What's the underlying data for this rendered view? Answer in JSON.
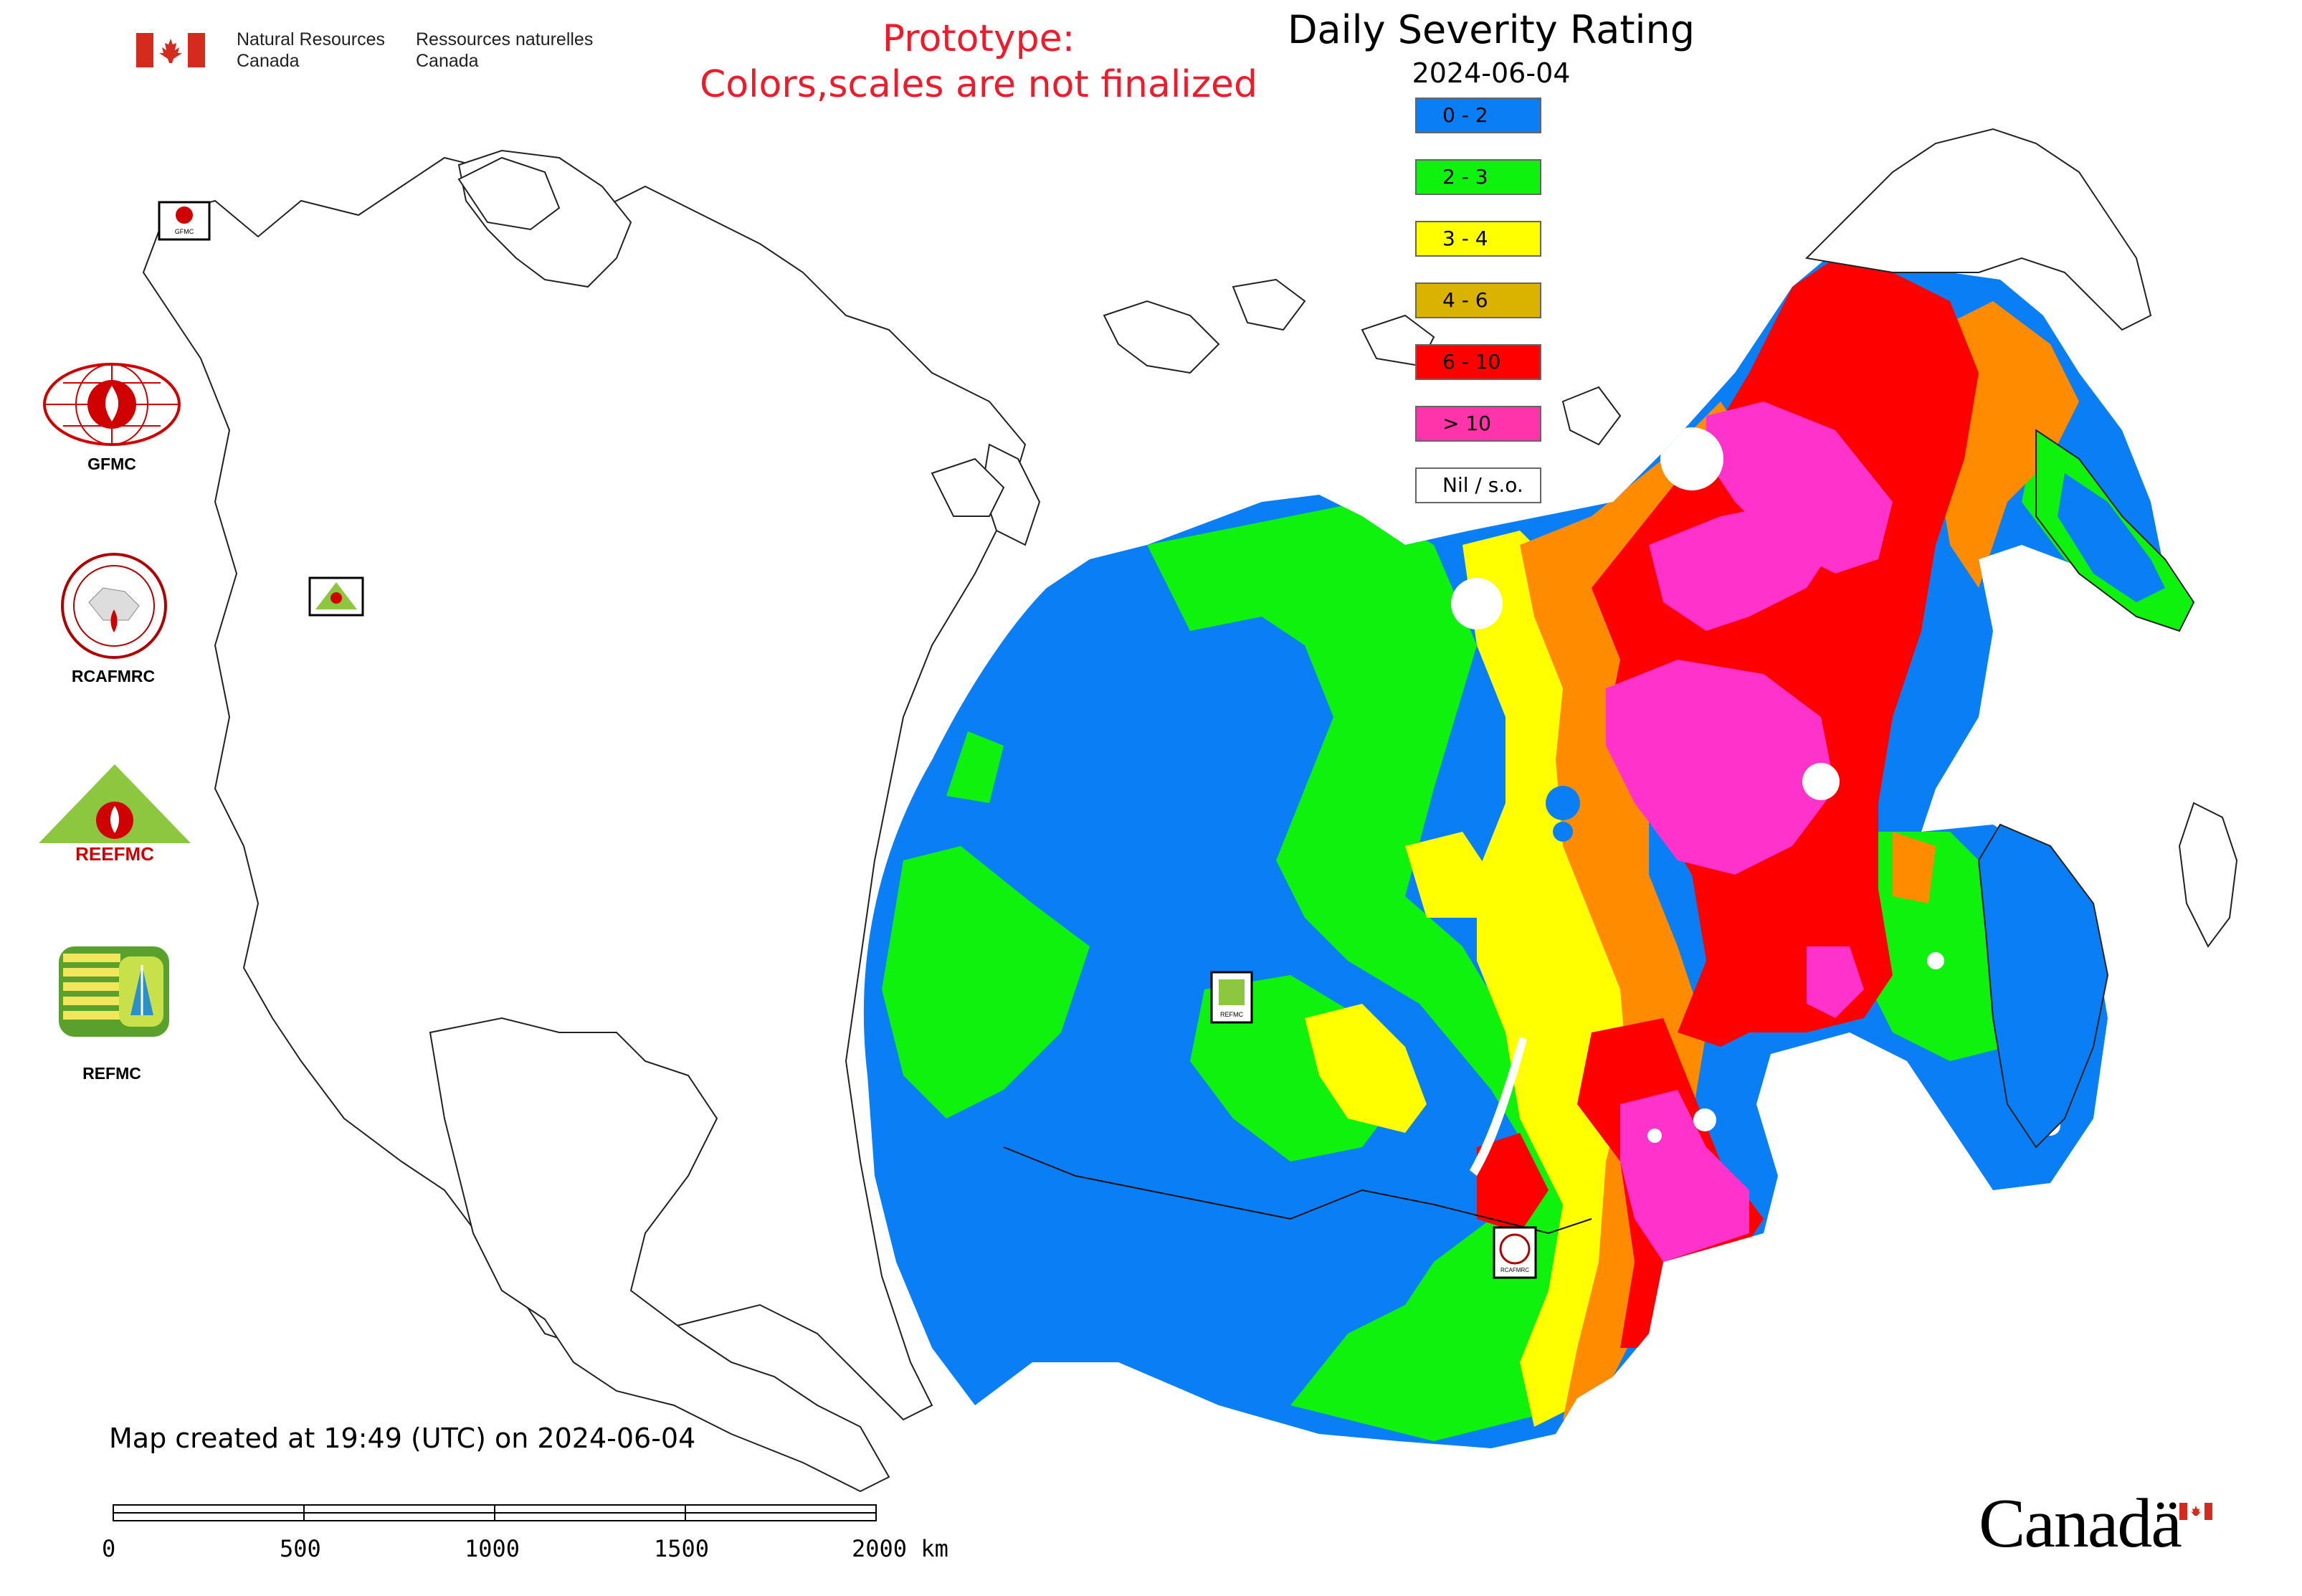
{
  "header": {
    "gov_en_line1": "Natural Resources",
    "gov_en_line2": "Canada",
    "gov_fr_line1": "Ressources naturelles",
    "gov_fr_line2": "Canada",
    "prototype_line1": "Prototype:",
    "prototype_line2": "Colors,scales are not finalized"
  },
  "legend": {
    "title": "Daily Severity Rating",
    "date": "2024-06-04",
    "items": [
      {
        "label": "0 - 2",
        "color": "#0a7ff5"
      },
      {
        "label": "2 - 3",
        "color": "#0ef20e"
      },
      {
        "label": "3 - 4",
        "color": "#ffff00"
      },
      {
        "label": "4 - 6",
        "color": "#d9b300"
      },
      {
        "label": "6 - 10",
        "color": "#ff0000"
      },
      {
        "label": "> 10",
        "color": "#ff33aa"
      },
      {
        "label": "Nil / s.o.",
        "color": "#ffffff"
      }
    ]
  },
  "logos": {
    "gfmc": "GFMC",
    "rcafmrc": "RCAFMRC",
    "reefmc": "REEFMC",
    "refmc": "REFMC"
  },
  "footer": {
    "credit": "Map created at 19:49 (UTC) on 2024-06-04",
    "scale_ticks": [
      "0",
      "500",
      "1000",
      "1500",
      "2000 km"
    ],
    "canada_wordmark": "Canadä"
  }
}
